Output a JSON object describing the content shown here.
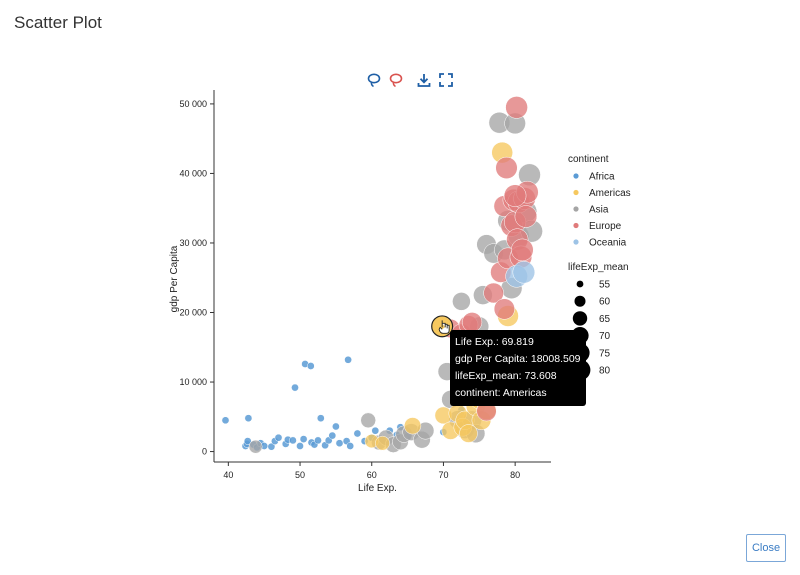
{
  "dialog": {
    "title": "Scatter Plot",
    "close_label": "Close"
  },
  "toolbar": {
    "icons": [
      "lasso-select-icon",
      "lasso-deselect-icon",
      "download-icon",
      "fullscreen-icon"
    ]
  },
  "colors": {
    "Africa": "#5b9bd5",
    "Americas": "#f6c85f",
    "Asia": "#a5a5a5",
    "Europe": "#e07b7b",
    "Oceania": "#9dc3e6",
    "tool_blue": "#1f5fa6",
    "tool_red": "#d9534f"
  },
  "tooltip": {
    "line1": "Life Exp.: 69.819",
    "line2": "gdp Per Capita: 18008.509",
    "line3": "lifeExp_mean: 73.608",
    "line4": "continent: Americas"
  },
  "chart_data": {
    "type": "scatter",
    "xlabel": "Life Exp.",
    "ylabel": "gdp Per Capita",
    "xlim": [
      38,
      85
    ],
    "ylim": [
      -1500,
      52000
    ],
    "xticks": [
      {
        "value": 40,
        "label": "40"
      },
      {
        "value": 50,
        "label": "50"
      },
      {
        "value": 60,
        "label": "60"
      },
      {
        "value": 70,
        "label": "70"
      },
      {
        "value": 80,
        "label": "80"
      }
    ],
    "yticks": [
      {
        "value": 0,
        "label": "0"
      },
      {
        "value": 10000,
        "label": "10 000"
      },
      {
        "value": 20000,
        "label": "20 000"
      },
      {
        "value": 30000,
        "label": "30 000"
      },
      {
        "value": 40000,
        "label": "40 000"
      },
      {
        "value": 50000,
        "label": "50 000"
      }
    ],
    "legend": {
      "color_title": "continent",
      "continents": [
        "Africa",
        "Americas",
        "Asia",
        "Europe",
        "Oceania"
      ],
      "size_title": "lifeExp_mean",
      "sizes": [
        {
          "value": 55,
          "label": "55"
        },
        {
          "value": 60,
          "label": "60"
        },
        {
          "value": 65,
          "label": "65"
        },
        {
          "value": 70,
          "label": "70"
        },
        {
          "value": 75,
          "label": "75"
        },
        {
          "value": 80,
          "label": "80"
        }
      ],
      "placement": "right"
    },
    "size_scale": {
      "min_value": 50,
      "max_value": 80
    },
    "hovered_point": {
      "x": 69.819,
      "y": 18008.509,
      "size": 73.608,
      "continent": "Americas"
    },
    "series": [
      {
        "name": "Africa",
        "points": [
          [
            39.6,
            4500,
            50
          ],
          [
            42.4,
            800,
            50
          ],
          [
            42.6,
            1100,
            50
          ],
          [
            42.7,
            1500,
            50
          ],
          [
            42.8,
            4800,
            50
          ],
          [
            43.5,
            1000,
            50
          ],
          [
            44.0,
            600,
            50
          ],
          [
            44.5,
            1200,
            50
          ],
          [
            45.0,
            800,
            50
          ],
          [
            46.0,
            700,
            50
          ],
          [
            46.5,
            1500,
            50
          ],
          [
            47.0,
            2000,
            50
          ],
          [
            48.0,
            1100,
            50
          ],
          [
            48.3,
            1700,
            50
          ],
          [
            49.0,
            1600,
            50
          ],
          [
            49.3,
            9200,
            50
          ],
          [
            50.0,
            800,
            50
          ],
          [
            50.5,
            1800,
            50
          ],
          [
            50.7,
            12600,
            50
          ],
          [
            51.5,
            12300,
            50
          ],
          [
            51.6,
            1300,
            50
          ],
          [
            52.0,
            1000,
            50
          ],
          [
            52.5,
            1600,
            50
          ],
          [
            52.9,
            4800,
            50
          ],
          [
            53.5,
            900,
            50
          ],
          [
            54.0,
            1600,
            50
          ],
          [
            54.5,
            2300,
            50
          ],
          [
            55.0,
            3600,
            50
          ],
          [
            55.5,
            1200,
            50
          ],
          [
            56.5,
            1500,
            50
          ],
          [
            56.7,
            13200,
            50
          ],
          [
            57.0,
            800,
            50
          ],
          [
            58.0,
            2600,
            50
          ],
          [
            59.0,
            1500,
            50
          ],
          [
            60.0,
            2000,
            50
          ],
          [
            60.5,
            3000,
            50
          ],
          [
            61.5,
            1800,
            50
          ],
          [
            62.5,
            3000,
            50
          ],
          [
            63.5,
            2400,
            50
          ],
          [
            64.0,
            3500,
            50
          ],
          [
            65.0,
            2200,
            50
          ],
          [
            70.0,
            2800,
            50
          ],
          [
            71.5,
            7500,
            50
          ],
          [
            72.5,
            6000,
            50
          ]
        ]
      },
      {
        "name": "Americas",
        "points": [
          [
            60.0,
            1500,
            63
          ],
          [
            61.5,
            1200,
            64
          ],
          [
            65.7,
            3700,
            69
          ],
          [
            69.8,
            18000,
            73
          ],
          [
            70.0,
            5200,
            70
          ],
          [
            71.0,
            3000,
            71
          ],
          [
            72.0,
            5500,
            72
          ],
          [
            72.7,
            3500,
            72
          ],
          [
            73.0,
            4500,
            73
          ],
          [
            73.5,
            2600,
            72
          ],
          [
            74.5,
            6500,
            74
          ],
          [
            75.0,
            7500,
            74
          ],
          [
            75.3,
            4500,
            74
          ],
          [
            76.0,
            6000,
            75
          ],
          [
            78.2,
            43000,
            78
          ],
          [
            79.0,
            19500,
            78
          ]
        ]
      },
      {
        "name": "Asia",
        "points": [
          [
            43.8,
            700,
            62
          ],
          [
            59.5,
            4500,
            66
          ],
          [
            61.0,
            1300,
            66
          ],
          [
            62.0,
            2000,
            67
          ],
          [
            63.0,
            1000,
            68
          ],
          [
            64.0,
            1400,
            68
          ],
          [
            64.5,
            2500,
            69
          ],
          [
            65.5,
            2800,
            70
          ],
          [
            67.0,
            1700,
            70
          ],
          [
            67.5,
            3000,
            70
          ],
          [
            70.5,
            11500,
            72
          ],
          [
            71.0,
            7500,
            72
          ],
          [
            72.0,
            4600,
            72
          ],
          [
            72.5,
            21600,
            72
          ],
          [
            73.0,
            3200,
            73
          ],
          [
            73.5,
            9500,
            73
          ],
          [
            74.0,
            4500,
            74
          ],
          [
            74.5,
            2600,
            73
          ],
          [
            75.0,
            18000,
            74
          ],
          [
            75.5,
            22500,
            74
          ],
          [
            76.0,
            29800,
            75
          ],
          [
            77.0,
            28500,
            75
          ],
          [
            77.8,
            47300,
            78
          ],
          [
            78.5,
            29000,
            76
          ],
          [
            79.0,
            33200,
            77
          ],
          [
            79.5,
            23500,
            78
          ],
          [
            80.0,
            47200,
            78
          ],
          [
            80.5,
            31000,
            78
          ],
          [
            81.5,
            34500,
            80
          ],
          [
            82.0,
            39800,
            80
          ],
          [
            82.3,
            31700,
            80
          ]
        ]
      },
      {
        "name": "Europe",
        "points": [
          [
            71.0,
            17700,
            73
          ],
          [
            72.5,
            17000,
            74
          ],
          [
            73.5,
            18200,
            74
          ],
          [
            74.0,
            18600,
            75
          ],
          [
            76.0,
            5800,
            75
          ],
          [
            77.0,
            22800,
            76
          ],
          [
            78.0,
            25800,
            77
          ],
          [
            78.5,
            20500,
            77
          ],
          [
            78.5,
            35300,
            78
          ],
          [
            78.8,
            40800,
            79
          ],
          [
            79.0,
            27800,
            78
          ],
          [
            79.5,
            32500,
            79
          ],
          [
            79.8,
            36200,
            79
          ],
          [
            80.0,
            33000,
            79
          ],
          [
            80.3,
            30500,
            79
          ],
          [
            80.5,
            35900,
            80
          ],
          [
            80.8,
            28000,
            80
          ],
          [
            81.0,
            29000,
            80
          ],
          [
            81.3,
            36400,
            80
          ],
          [
            81.5,
            33800,
            80
          ],
          [
            81.7,
            37300,
            80
          ],
          [
            80.2,
            49500,
            80
          ],
          [
            80.0,
            36800,
            80
          ]
        ]
      },
      {
        "name": "Oceania",
        "points": [
          [
            80.2,
            25200,
            80
          ],
          [
            81.2,
            25800,
            80
          ]
        ]
      }
    ]
  }
}
